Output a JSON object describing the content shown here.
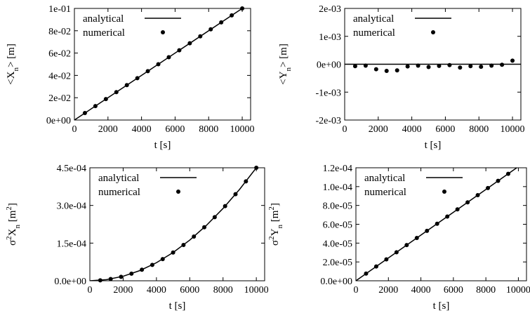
{
  "chart_data": [
    {
      "type": "line",
      "ylabel": [
        {
          "text": "<X"
        },
        {
          "text": "n",
          "script": "sub"
        },
        {
          "text": "> [m]"
        }
      ],
      "xlabel": "t [s]",
      "xlim": [
        0,
        10500
      ],
      "xticks": [
        0,
        2000,
        4000,
        6000,
        8000,
        10000
      ],
      "ylim": [
        0,
        0.1
      ],
      "yticks": [
        {
          "value": 0,
          "label": "0e+00"
        },
        {
          "value": 0.02,
          "label": "2e-02"
        },
        {
          "value": 0.04,
          "label": "4e-02"
        },
        {
          "value": 0.06,
          "label": "6e-02"
        },
        {
          "value": 0.08,
          "label": "8e-02"
        },
        {
          "value": 0.1,
          "label": "1e-01"
        }
      ],
      "legend": "upper left",
      "series": [
        {
          "name": "analytical",
          "style": "line",
          "color": "#000000",
          "x": [
            0,
            10000
          ],
          "values": [
            0,
            0.1
          ]
        },
        {
          "name": "numerical",
          "style": "points",
          "color": "#000000",
          "x": [
            625,
            1250,
            1875,
            2500,
            3125,
            3750,
            4375,
            5000,
            5625,
            6250,
            6875,
            7500,
            8125,
            8750,
            9375,
            10000
          ],
          "values": [
            0.0063,
            0.0125,
            0.0188,
            0.025,
            0.0313,
            0.0375,
            0.0438,
            0.05,
            0.0563,
            0.0625,
            0.0688,
            0.075,
            0.0813,
            0.0875,
            0.0938,
            0.1
          ]
        }
      ]
    },
    {
      "type": "line",
      "ylabel": [
        {
          "text": "<Y"
        },
        {
          "text": "n",
          "script": "sub"
        },
        {
          "text": "> [m]"
        }
      ],
      "xlabel": "t [s]",
      "xlim": [
        0,
        10500
      ],
      "xticks": [
        0,
        2000,
        4000,
        6000,
        8000,
        10000
      ],
      "ylim": [
        -0.002,
        0.002
      ],
      "yticks": [
        {
          "value": -0.002,
          "label": "-2e-03"
        },
        {
          "value": -0.001,
          "label": "-1e-03"
        },
        {
          "value": 0,
          "label": "0e+00"
        },
        {
          "value": 0.001,
          "label": "1e-03"
        },
        {
          "value": 0.002,
          "label": "2e-03"
        }
      ],
      "legend": "upper left",
      "series": [
        {
          "name": "analytical",
          "style": "line",
          "color": "#000000",
          "x": [
            0,
            10500
          ],
          "values": [
            0,
            0
          ]
        },
        {
          "name": "numerical",
          "style": "points",
          "color": "#000000",
          "x": [
            625,
            1250,
            1875,
            2500,
            3125,
            3750,
            4375,
            5000,
            5625,
            6250,
            6875,
            7500,
            8125,
            8750,
            9375,
            10000
          ],
          "values": [
            -7e-05,
            -5e-05,
            -0.00018,
            -0.00024,
            -0.00022,
            -8e-05,
            -5e-05,
            -0.0001,
            -6e-05,
            -3e-05,
            -0.00012,
            -7e-05,
            -9e-05,
            -5e-05,
            -2e-05,
            0.00013
          ]
        }
      ]
    },
    {
      "type": "line",
      "ylabel": [
        {
          "text": "σ"
        },
        {
          "text": "2",
          "script": "sup"
        },
        {
          "text": "X"
        },
        {
          "text": "n",
          "script": "sub"
        },
        {
          "text": " [m"
        },
        {
          "text": "2",
          "script": "sup"
        },
        {
          "text": "]"
        }
      ],
      "xlabel": "t [s]",
      "xlim": [
        0,
        10500
      ],
      "xticks": [
        0,
        2000,
        4000,
        6000,
        8000,
        10000
      ],
      "ylim": [
        0,
        0.00045
      ],
      "yticks": [
        {
          "value": 0,
          "label": "0.0e+00"
        },
        {
          "value": 0.00015,
          "label": "1.5e-04"
        },
        {
          "value": 0.0003,
          "label": "3.0e-04"
        },
        {
          "value": 0.00045,
          "label": "4.5e-04"
        }
      ],
      "legend": "upper left",
      "series": [
        {
          "name": "analytical",
          "style": "line",
          "color": "#000000",
          "x": [
            0,
            1000,
            2000,
            3000,
            4000,
            5000,
            6000,
            7000,
            8000,
            9000,
            10000
          ],
          "values": [
            0,
            4.5e-06,
            1.8e-05,
            4.05e-05,
            7.2e-05,
            0.0001125,
            0.000162,
            0.0002205,
            0.000288,
            0.0003645,
            0.00045
          ]
        },
        {
          "name": "numerical",
          "style": "points",
          "color": "#000000",
          "x": [
            625,
            1250,
            1875,
            2500,
            3125,
            3750,
            4375,
            5000,
            5625,
            6250,
            6875,
            7500,
            8125,
            8750,
            9375,
            10000
          ],
          "values": [
            1.8e-06,
            7e-06,
            1.58e-05,
            2.82e-05,
            4.4e-05,
            6.34e-05,
            8.62e-05,
            0.0001126,
            0.0001426,
            0.000176,
            0.000213,
            0.0002534,
            0.0002974,
            0.000345,
            0.000396,
            0.00045
          ]
        }
      ]
    },
    {
      "type": "line",
      "ylabel": [
        {
          "text": "σ"
        },
        {
          "text": "2",
          "script": "sup"
        },
        {
          "text": "Y"
        },
        {
          "text": "n",
          "script": "sub"
        },
        {
          "text": " [m"
        },
        {
          "text": "2",
          "script": "sup"
        },
        {
          "text": "]"
        }
      ],
      "xlabel": "t [s]",
      "xlim": [
        0,
        10500
      ],
      "xticks": [
        0,
        2000,
        4000,
        6000,
        8000,
        10000
      ],
      "ylim": [
        0,
        0.00012
      ],
      "yticks": [
        {
          "value": 0,
          "label": "0.0e+00"
        },
        {
          "value": 2e-05,
          "label": "2.0e-05"
        },
        {
          "value": 4e-05,
          "label": "4.0e-05"
        },
        {
          "value": 6e-05,
          "label": "6.0e-05"
        },
        {
          "value": 8e-05,
          "label": "8.0e-05"
        },
        {
          "value": 0.0001,
          "label": "1.0e-04"
        },
        {
          "value": 0.00012,
          "label": "1.2e-04"
        }
      ],
      "legend": "upper left",
      "series": [
        {
          "name": "analytical",
          "style": "line",
          "color": "#000000",
          "x": [
            0,
            9900
          ],
          "values": [
            0,
            0.00012
          ]
        },
        {
          "name": "numerical",
          "style": "points",
          "color": "#000000",
          "x": [
            625,
            1250,
            1875,
            2500,
            3125,
            3750,
            4375,
            5000,
            5625,
            6250,
            6875,
            7500,
            8125,
            8750,
            9375
          ],
          "values": [
            7.6e-06,
            1.52e-05,
            2.27e-05,
            3.03e-05,
            3.79e-05,
            4.55e-05,
            5.3e-05,
            6.06e-05,
            6.82e-05,
            7.58e-05,
            8.33e-05,
            9.09e-05,
            9.85e-05,
            0.0001061,
            0.0001136
          ]
        }
      ]
    }
  ]
}
